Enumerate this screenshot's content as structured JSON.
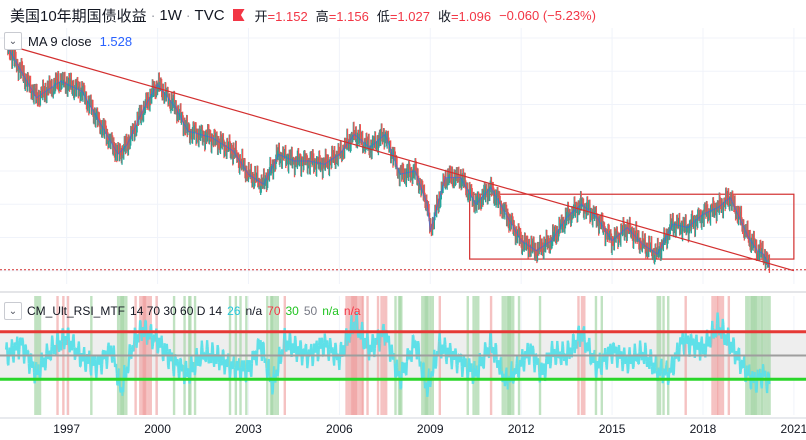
{
  "header": {
    "title": "美国10年期国债收益",
    "interval": "1W",
    "source": "TVC",
    "open_label": "开",
    "open": "=1.152",
    "high_label": "高",
    "high": "=1.156",
    "low_label": "低",
    "low": "=1.027",
    "close_label": "收",
    "close": "=1.096",
    "change": "−0.060 (−5.23%)"
  },
  "ma": {
    "label": "MA 9 close",
    "value": "1.528"
  },
  "rsi": {
    "label": "CM_Ult_RSI_MTF",
    "params": "14 70 30 60 D 14",
    "v1": "26",
    "v2": "n/a",
    "v3": "70",
    "v4": "30",
    "v5": "50",
    "v6": "n/a",
    "v7": "n/a"
  },
  "colors": {
    "up": "#26a69a",
    "down": "#ef5350",
    "trend": "#d32f2f",
    "rsi": "#5ee0e8",
    "upper": "#e53935",
    "lower": "#29d629",
    "mid": "#9e9e9e"
  },
  "chart_data": [
    {
      "type": "line",
      "title": "美国10年期国债收益 · 1W · TVC",
      "x": [
        1995.0,
        1996.0,
        1996.8,
        1997.5,
        1998.0,
        1998.7,
        1999.0,
        1999.5,
        2000.0,
        2000.6,
        2001.0,
        2001.8,
        2002.5,
        2003.0,
        2003.5,
        2004.0,
        2004.5,
        2005.0,
        2005.5,
        2006.0,
        2006.5,
        2007.0,
        2007.5,
        2008.0,
        2008.5,
        2008.9,
        2009.0,
        2009.5,
        2010.0,
        2010.5,
        2011.0,
        2011.5,
        2012.0,
        2012.5,
        2013.0,
        2013.5,
        2014.0,
        2014.5,
        2015.0,
        2015.5,
        2016.0,
        2016.5,
        2017.0,
        2017.5,
        2018.0,
        2018.5,
        2018.9,
        2019.5,
        2019.8,
        2020.0,
        2020.2
      ],
      "values": [
        7.8,
        6.2,
        6.7,
        6.4,
        5.6,
        4.5,
        4.8,
        5.8,
        6.6,
        5.9,
        5.2,
        5.0,
        4.6,
        3.9,
        3.6,
        4.5,
        4.3,
        4.3,
        4.2,
        4.5,
        5.1,
        4.7,
        5.1,
        3.9,
        4.0,
        3.0,
        2.2,
        3.8,
        3.8,
        3.0,
        3.5,
        2.7,
        1.9,
        1.6,
        1.9,
        2.6,
        3.0,
        2.6,
        1.9,
        2.3,
        1.8,
        1.5,
        2.4,
        2.3,
        2.7,
        2.9,
        3.2,
        2.0,
        1.6,
        1.5,
        1.1
      ],
      "trendline": {
        "from": [
          1995.0,
          7.8
        ],
        "to": [
          2021.0,
          1.0
        ]
      },
      "range_box": {
        "x": [
          2010.3,
          2021.0
        ],
        "y": [
          1.35,
          3.3
        ]
      },
      "reference_level": 1.027,
      "xlim": [
        1994.8,
        2021.4
      ],
      "ylim": [
        0.6,
        8.3
      ],
      "x_ticks": [
        "1997",
        "2000",
        "2003",
        "2006",
        "2009",
        "2012",
        "2015",
        "2018",
        "2021"
      ],
      "x_tick_values": [
        1997,
        2000,
        2003,
        2006,
        2009,
        2012,
        2015,
        2018,
        2021
      ],
      "legend": "MA 9 close"
    },
    {
      "type": "line",
      "title": "CM_Ult_RSI_MTF",
      "x": [
        1995.0,
        1995.5,
        1996.0,
        1996.5,
        1997.0,
        1997.5,
        1998.0,
        1998.5,
        1998.8,
        1999.2,
        1999.5,
        2000.0,
        2000.5,
        2001.0,
        2001.5,
        2002.0,
        2002.5,
        2003.0,
        2003.4,
        2003.8,
        2004.2,
        2004.6,
        2005.0,
        2005.5,
        2006.0,
        2006.5,
        2007.0,
        2007.5,
        2008.0,
        2008.5,
        2008.9,
        2009.3,
        2009.7,
        2010.0,
        2010.5,
        2011.0,
        2011.5,
        2011.9,
        2012.3,
        2012.7,
        2013.0,
        2013.5,
        2014.0,
        2014.5,
        2015.0,
        2015.5,
        2016.0,
        2016.5,
        2016.9,
        2017.3,
        2017.7,
        2018.0,
        2018.5,
        2018.9,
        2019.3,
        2019.7,
        2020.0,
        2020.2
      ],
      "values": [
        50,
        60,
        35,
        55,
        65,
        48,
        42,
        55,
        20,
        60,
        72,
        62,
        45,
        35,
        52,
        48,
        40,
        38,
        60,
        25,
        62,
        55,
        50,
        60,
        48,
        78,
        55,
        70,
        30,
        62,
        22,
        58,
        50,
        45,
        35,
        60,
        28,
        40,
        55,
        35,
        52,
        50,
        68,
        40,
        55,
        45,
        52,
        38,
        35,
        62,
        60,
        55,
        75,
        60,
        42,
        28,
        35,
        26
      ],
      "upper": 70,
      "lower": 30,
      "mid": 50,
      "ylim": [
        0,
        100
      ]
    }
  ]
}
